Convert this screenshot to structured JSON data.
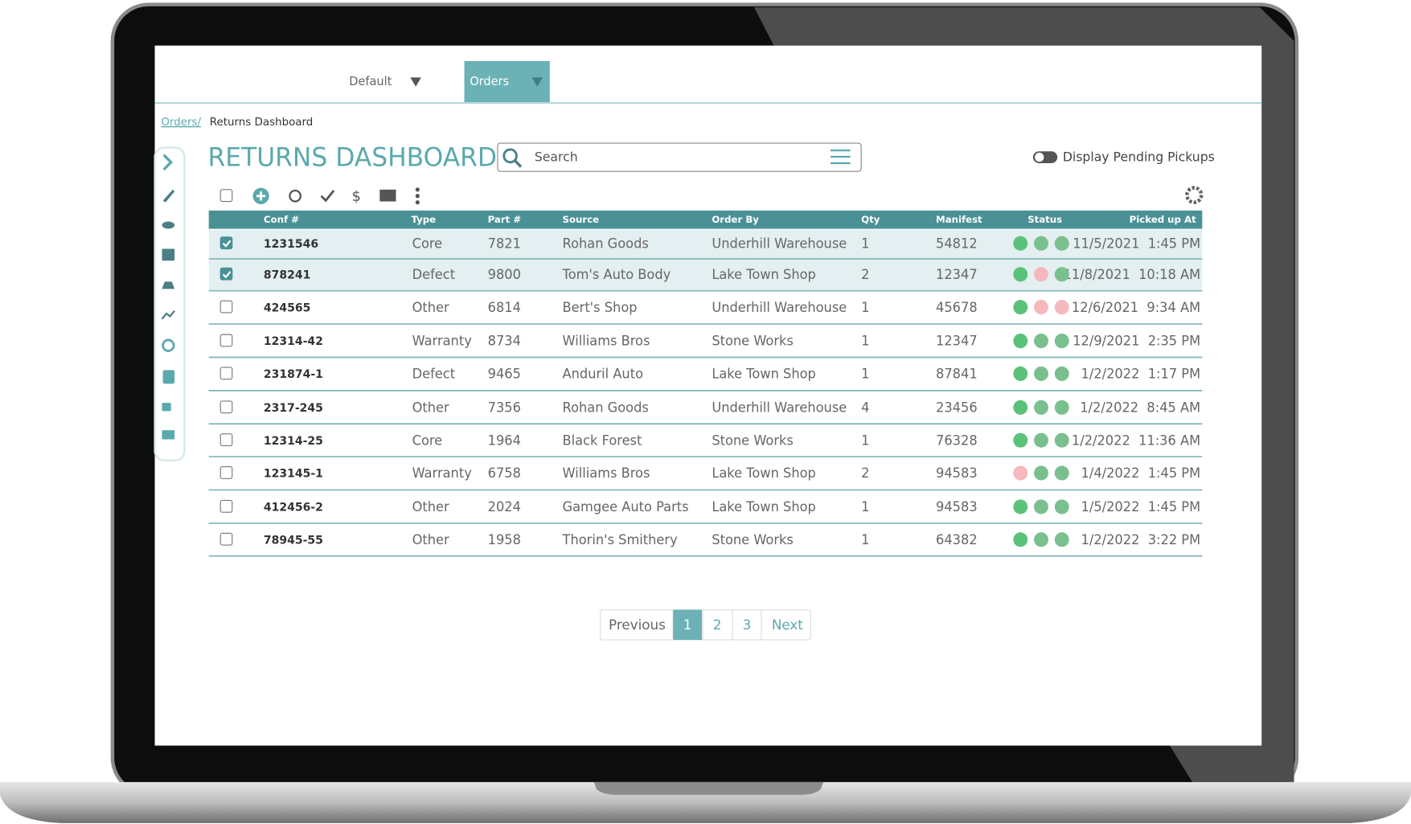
{
  "tabs": [
    "Default",
    "Orders"
  ],
  "breadcrumb": {
    "link": "Orders/",
    "current": "Returns Dashboard"
  },
  "title": "RETURNS DASHBOARD",
  "search_placeholder": "Search",
  "toggle_label": "Display Pending Pickups",
  "table": {
    "columns": [
      "Conf #",
      "Type",
      "Part #",
      "Source",
      "Order By",
      "Qty",
      "Manifest",
      "Status",
      "Picked up At"
    ],
    "rows": [
      {
        "checked": true,
        "status": [
          true,
          true,
          true
        ],
        "cells": [
          "1231546",
          "Core",
          "7821",
          "Rohan Goods",
          "Underhill Warehouse",
          "1",
          "54812",
          "11/5/2021  1:45 PM"
        ]
      },
      {
        "checked": true,
        "status": [
          true,
          false,
          true
        ],
        "cells": [
          "878241",
          "Defect",
          "9800",
          "Tom's Auto Body",
          "Lake Town Shop",
          "2",
          "12347",
          "11/8/2021  10:18 AM"
        ]
      },
      {
        "checked": false,
        "status": [
          true,
          false,
          false
        ],
        "cells": [
          "424565",
          "Other",
          "6814",
          "Bert's Shop",
          "Underhill Warehouse",
          "1",
          "45678",
          "12/6/2021  9:34 AM"
        ]
      },
      {
        "checked": false,
        "status": [
          true,
          true,
          true
        ],
        "cells": [
          "12314-42",
          "Warranty",
          "8734",
          "Williams Bros",
          "Stone Works",
          "1",
          "12347",
          "12/9/2021  2:35 PM"
        ]
      },
      {
        "checked": false,
        "status": [
          true,
          true,
          true
        ],
        "cells": [
          "231874-1",
          "Defect",
          "9465",
          "Anduril Auto",
          "Lake Town Shop",
          "1",
          "87841",
          "1/2/2022  1:17 PM"
        ]
      },
      {
        "checked": false,
        "status": [
          true,
          true,
          true
        ],
        "cells": [
          "2317-245",
          "Other",
          "7356",
          "Rohan Goods",
          "Underhill Warehouse",
          "4",
          "23456",
          "1/2/2022  8:45 AM"
        ]
      },
      {
        "checked": false,
        "status": [
          true,
          true,
          true
        ],
        "cells": [
          "12314-25",
          "Core",
          "1964",
          "Black Forest",
          "Stone Works",
          "1",
          "76328",
          "1/2/2022  11:36 AM"
        ]
      },
      {
        "checked": false,
        "status": [
          false,
          true,
          true
        ],
        "cells": [
          "123145-1",
          "Warranty",
          "6758",
          "Williams Bros",
          "Lake Town Shop",
          "2",
          "94583",
          "1/4/2022  1:45 PM"
        ]
      },
      {
        "checked": false,
        "status": [
          true,
          true,
          true
        ],
        "cells": [
          "412456-2",
          "Other",
          "2024",
          "Gamgee Auto Parts",
          "Lake Town Shop",
          "1",
          "94583",
          "1/5/2022  1:45 PM"
        ]
      },
      {
        "checked": false,
        "status": [
          true,
          true,
          true
        ],
        "cells": [
          "78945-55",
          "Other",
          "1958",
          "Thorin's Smithery",
          "Stone Works",
          "1",
          "64382",
          "1/2/2022  3:22 PM"
        ]
      }
    ]
  },
  "pagination": {
    "previous": "Previous",
    "pages": [
      1,
      2,
      3
    ],
    "current": 1,
    "next": "Next"
  }
}
